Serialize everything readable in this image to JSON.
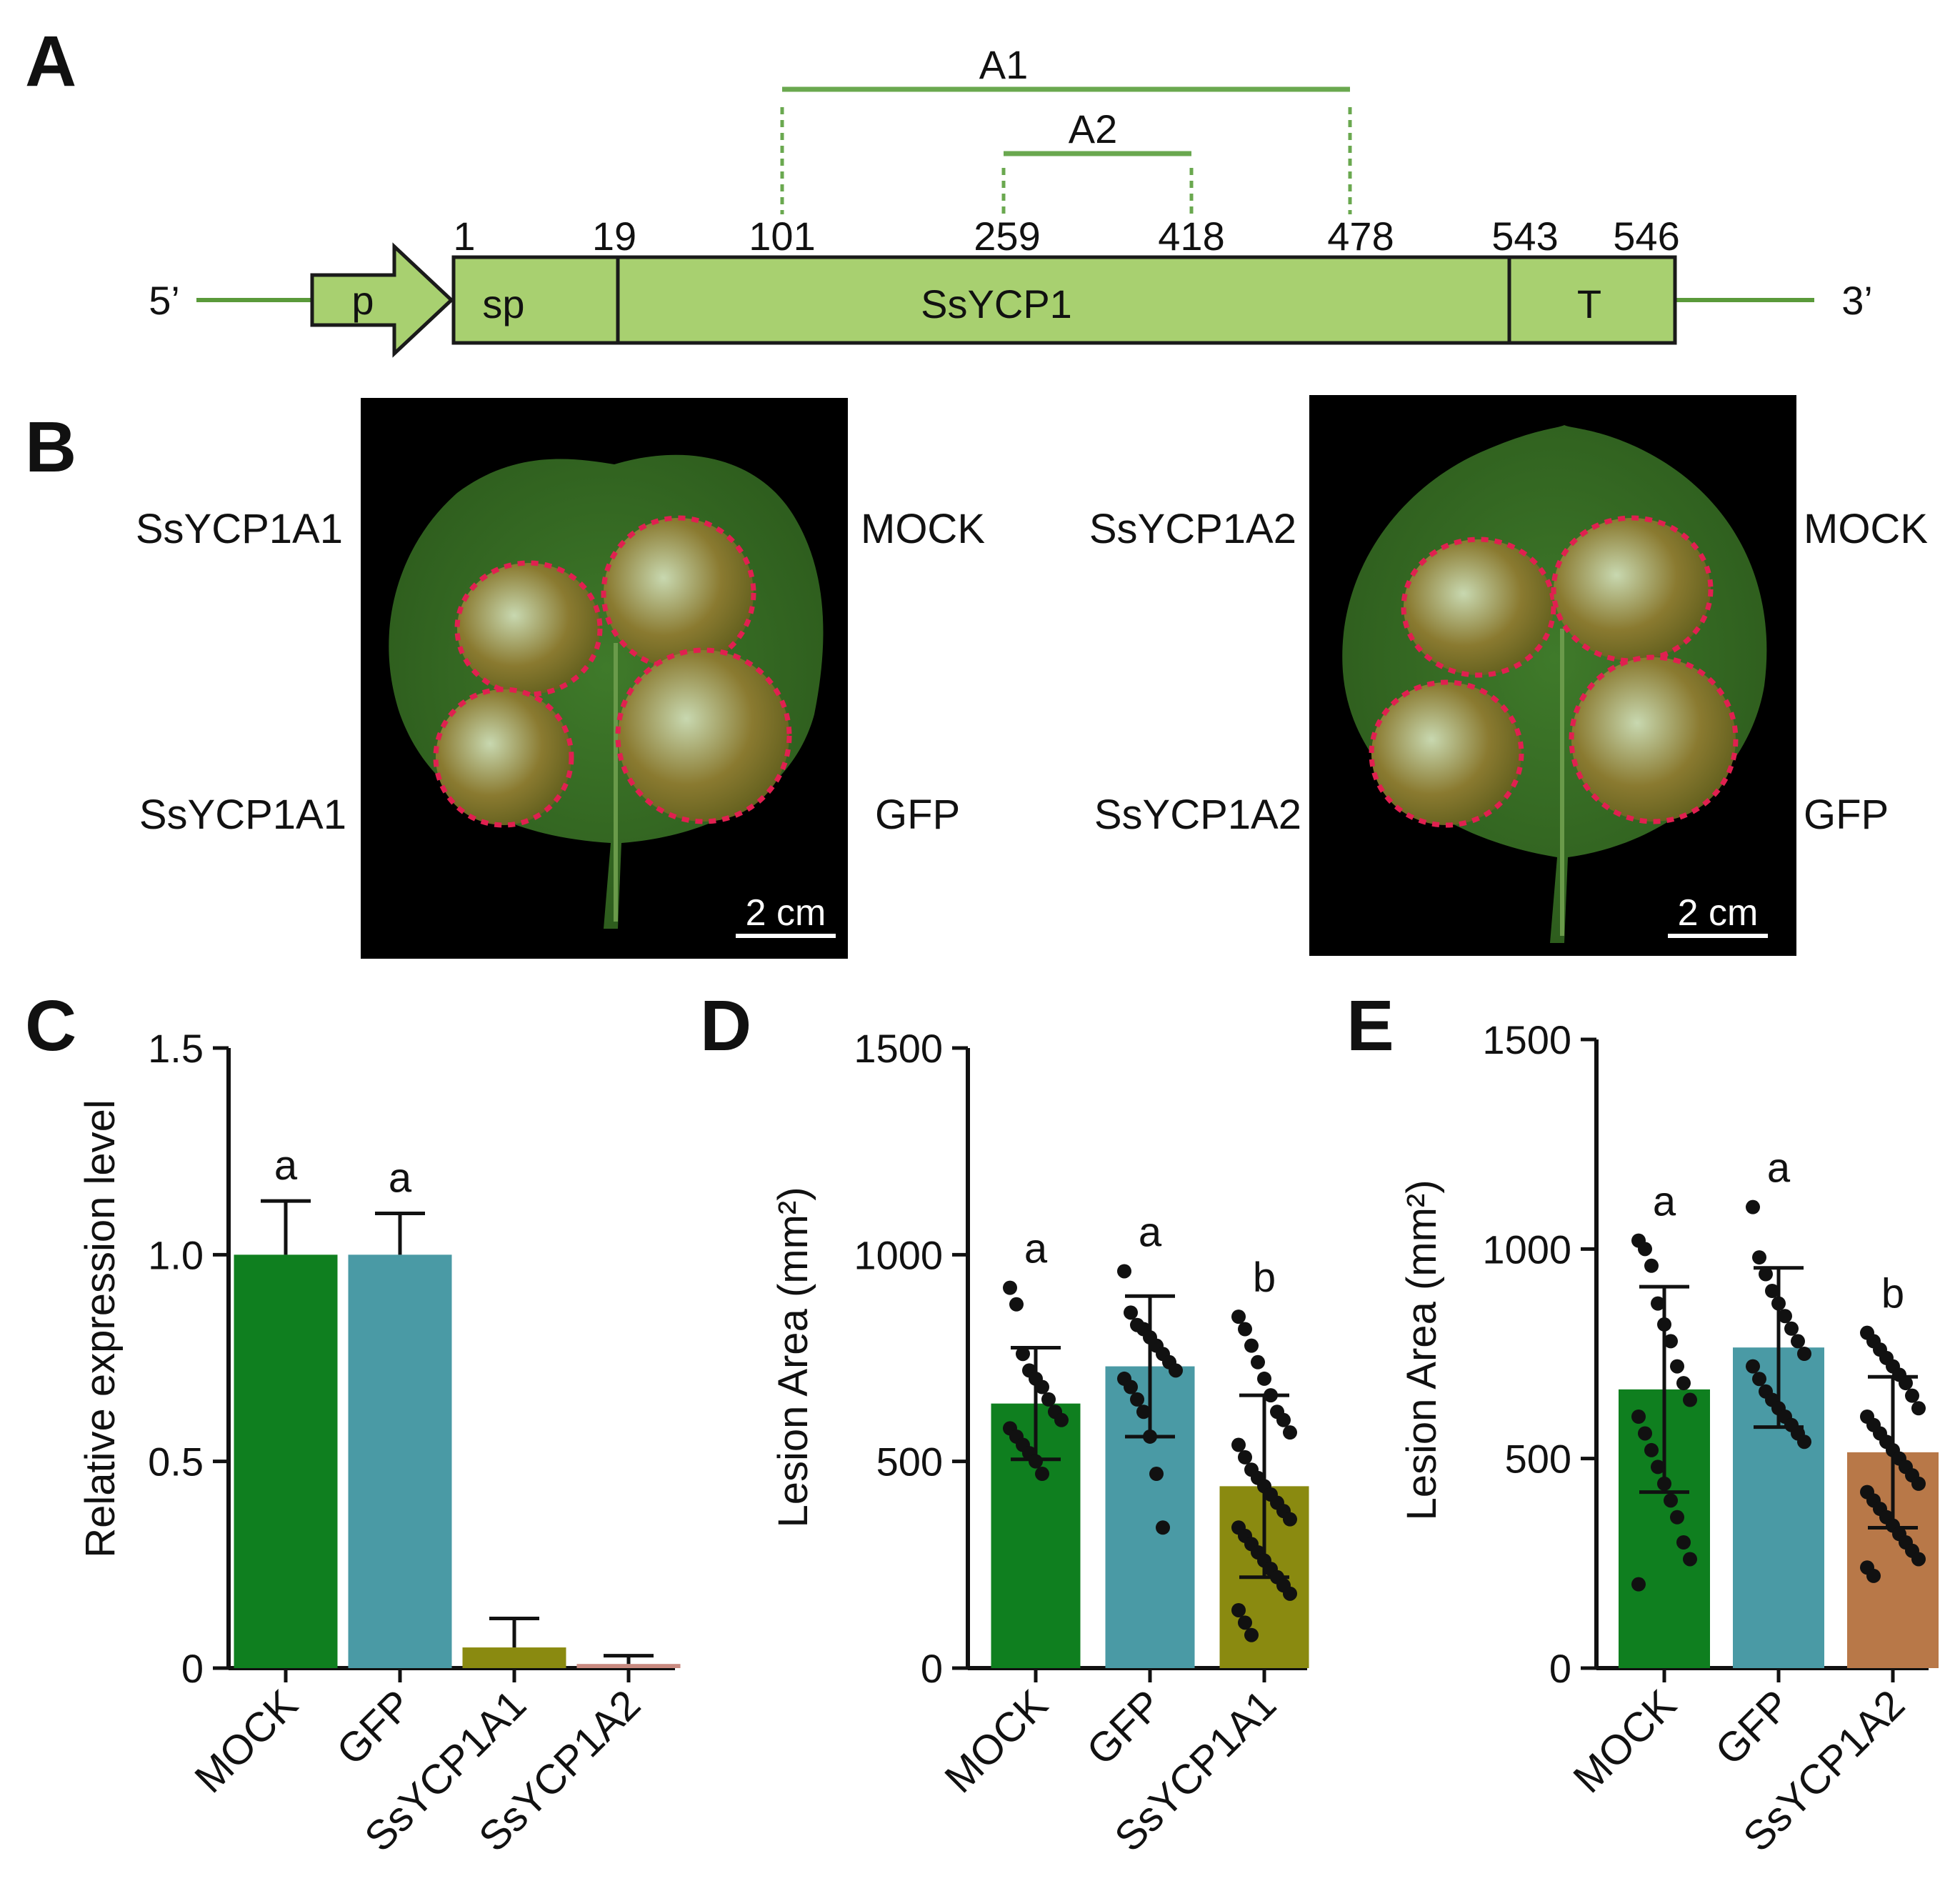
{
  "panels": {
    "A": {
      "label": "A",
      "five_prime": "5’",
      "three_prime": "3’",
      "promoter": "p",
      "signal_peptide": "sp",
      "gene": "SsYCP1",
      "terminator": "T",
      "positions": [
        "1",
        "19",
        "101",
        "259",
        "418",
        "478",
        "543",
        "546"
      ],
      "fragments": [
        {
          "name": "A1",
          "start": 101,
          "end": 478
        },
        {
          "name": "A2",
          "start": 259,
          "end": 418
        }
      ],
      "colors": {
        "box_fill": "#a8d070",
        "line": "#5a9a3a",
        "fragment_line": "#6aa84f"
      }
    },
    "B": {
      "label": "B",
      "left_leaf": {
        "top_left": "SsYCP1A1",
        "top_right": "MOCK",
        "bottom_left": "SsYCP1A1",
        "bottom_right": "GFP",
        "scale_bar": "2 cm"
      },
      "right_leaf": {
        "top_left": "SsYCP1A2",
        "top_right": "MOCK",
        "bottom_left": "SsYCP1A2",
        "bottom_right": "GFP",
        "scale_bar": "2 cm"
      }
    },
    "C": {
      "label": "C"
    },
    "D": {
      "label": "D"
    },
    "E": {
      "label": "E"
    }
  },
  "chart_data": [
    {
      "panel": "C",
      "type": "bar",
      "ylabel": "Relative expression level",
      "ylim": [
        0,
        1.5
      ],
      "yticks": [
        "0",
        "0.5",
        "1.0",
        "1.5"
      ],
      "ytick_values": [
        0,
        0.5,
        1.0,
        1.5
      ],
      "categories": [
        "MOCK",
        "GFP",
        "SsYCP1A1",
        "SsYCP1A2"
      ],
      "values": [
        1.0,
        1.0,
        0.05,
        0.01
      ],
      "errors": [
        0.13,
        0.1,
        0.07,
        0.02
      ],
      "letters": [
        "a",
        "a",
        "",
        ""
      ],
      "colors": [
        "#0f7f1f",
        "#4a9aa5",
        "#8a8a10",
        "#c98a80"
      ]
    },
    {
      "panel": "D",
      "type": "bar",
      "ylabel": "Lesion Area (mm²)",
      "ylim": [
        0,
        1500
      ],
      "yticks": [
        "0",
        "500",
        "1000",
        "1500"
      ],
      "ytick_values": [
        0,
        500,
        1000,
        1500
      ],
      "categories": [
        "MOCK",
        "GFP",
        "SsYCP1A1"
      ],
      "values": [
        640,
        730,
        440
      ],
      "errors": [
        135,
        170,
        220
      ],
      "letters": [
        "a",
        "a",
        "b"
      ],
      "colors": [
        "#0f7f1f",
        "#4a9aa5",
        "#8a8a10"
      ],
      "points": [
        [
          920,
          880,
          760,
          720,
          700,
          680,
          650,
          620,
          600,
          580,
          560,
          540,
          520,
          500,
          470
        ],
        [
          960,
          860,
          830,
          820,
          800,
          780,
          760,
          740,
          720,
          700,
          680,
          650,
          620,
          560,
          470,
          340
        ],
        [
          850,
          820,
          780,
          740,
          700,
          660,
          620,
          600,
          570,
          540,
          510,
          480,
          460,
          440,
          420,
          400,
          380,
          360,
          340,
          320,
          300,
          280,
          260,
          240,
          220,
          200,
          180,
          140,
          110,
          80
        ]
      ]
    },
    {
      "panel": "E",
      "type": "bar",
      "ylabel": "Lesion Area (mm²)",
      "ylim": [
        0,
        1500
      ],
      "yticks": [
        "0",
        "500",
        "1000",
        "1500"
      ],
      "ytick_values": [
        0,
        500,
        1000,
        1500
      ],
      "categories": [
        "MOCK",
        "GFP",
        "SsYCP1A2"
      ],
      "values": [
        665,
        765,
        515
      ],
      "errors": [
        245,
        190,
        180
      ],
      "letters": [
        "a",
        "a",
        "b"
      ],
      "colors": [
        "#0f7f1f",
        "#4a9aa5",
        "#b87848"
      ],
      "points": [
        [
          1020,
          1000,
          960,
          870,
          820,
          780,
          720,
          680,
          640,
          600,
          560,
          520,
          480,
          440,
          400,
          360,
          300,
          260,
          200
        ],
        [
          1100,
          980,
          940,
          900,
          870,
          840,
          810,
          780,
          750,
          720,
          690,
          660,
          640,
          620,
          600,
          580,
          560,
          540
        ],
        [
          800,
          780,
          760,
          740,
          720,
          700,
          680,
          650,
          620,
          600,
          580,
          560,
          540,
          520,
          500,
          480,
          460,
          440,
          420,
          400,
          380,
          360,
          340,
          320,
          300,
          280,
          260,
          240,
          220
        ]
      ]
    }
  ]
}
